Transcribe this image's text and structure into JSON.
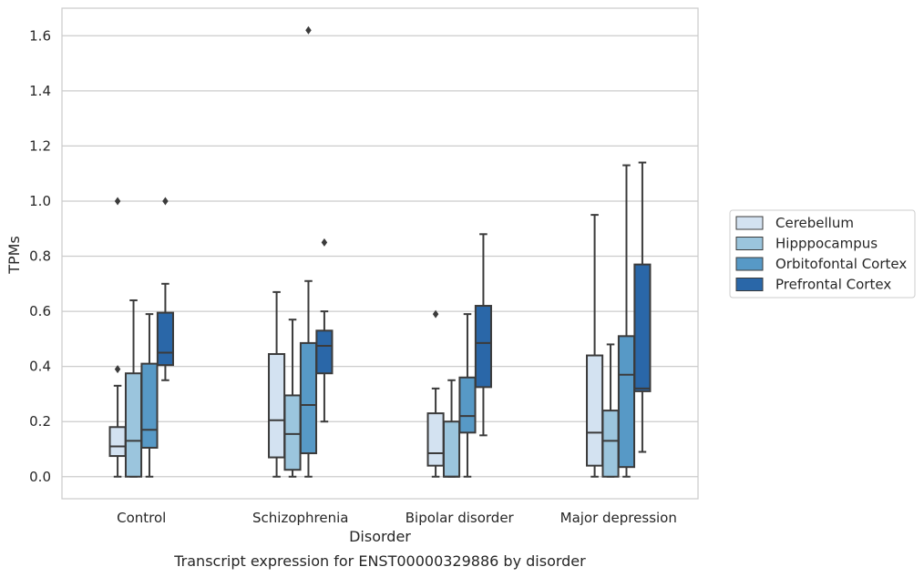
{
  "chart_data": {
    "type": "boxplot",
    "caption": "Transcript expression for ENST00000329886 by disorder",
    "xlabel": "Disorder",
    "ylabel": "TPMs",
    "ylim": [
      -0.08,
      1.7
    ],
    "yticks": [
      "0.0",
      "0.2",
      "0.4",
      "0.6",
      "0.8",
      "1.0",
      "1.2",
      "1.4",
      "1.6"
    ],
    "grid": "horizontal",
    "legend_position": "right",
    "categories": [
      "Control",
      "Schizophrenia",
      "Bipolar disorder",
      "Major depression"
    ],
    "series": [
      {
        "name": "Cerebellum",
        "color": "#d3e2f1",
        "boxes": [
          {
            "whisker_low": 0.0,
            "q1": 0.075,
            "median": 0.11,
            "q3": 0.18,
            "whisker_high": 0.33,
            "outliers": [
              0.39,
              1.0
            ]
          },
          {
            "whisker_low": 0.0,
            "q1": 0.07,
            "median": 0.205,
            "q3": 0.445,
            "whisker_high": 0.67,
            "outliers": []
          },
          {
            "whisker_low": 0.0,
            "q1": 0.04,
            "median": 0.085,
            "q3": 0.23,
            "whisker_high": 0.32,
            "outliers": [
              0.59
            ]
          },
          {
            "whisker_low": 0.0,
            "q1": 0.04,
            "median": 0.16,
            "q3": 0.44,
            "whisker_high": 0.95,
            "outliers": []
          }
        ]
      },
      {
        "name": "Hipppocampus",
        "color": "#9bc5dd",
        "boxes": [
          {
            "whisker_low": 0.0,
            "q1": 0.0,
            "median": 0.13,
            "q3": 0.375,
            "whisker_high": 0.64,
            "outliers": []
          },
          {
            "whisker_low": 0.0,
            "q1": 0.025,
            "median": 0.155,
            "q3": 0.295,
            "whisker_high": 0.57,
            "outliers": []
          },
          {
            "whisker_low": 0.0,
            "q1": 0.0,
            "median": 0.0,
            "q3": 0.2,
            "whisker_high": 0.35,
            "outliers": []
          },
          {
            "whisker_low": 0.0,
            "q1": 0.0,
            "median": 0.13,
            "q3": 0.24,
            "whisker_high": 0.48,
            "outliers": []
          }
        ]
      },
      {
        "name": "Orbitofontal Cortex",
        "color": "#5799c6",
        "boxes": [
          {
            "whisker_low": 0.0,
            "q1": 0.105,
            "median": 0.17,
            "q3": 0.41,
            "whisker_high": 0.59,
            "outliers": []
          },
          {
            "whisker_low": 0.0,
            "q1": 0.085,
            "median": 0.26,
            "q3": 0.485,
            "whisker_high": 0.71,
            "outliers": [
              1.62
            ]
          },
          {
            "whisker_low": 0.0,
            "q1": 0.16,
            "median": 0.22,
            "q3": 0.36,
            "whisker_high": 0.59,
            "outliers": []
          },
          {
            "whisker_low": 0.0,
            "q1": 0.035,
            "median": 0.37,
            "q3": 0.51,
            "whisker_high": 1.13,
            "outliers": []
          }
        ]
      },
      {
        "name": "Prefrontal Cortex",
        "color": "#2a67a8",
        "boxes": [
          {
            "whisker_low": 0.35,
            "q1": 0.405,
            "median": 0.45,
            "q3": 0.595,
            "whisker_high": 0.7,
            "outliers": [
              1.0
            ]
          },
          {
            "whisker_low": 0.2,
            "q1": 0.375,
            "median": 0.475,
            "q3": 0.53,
            "whisker_high": 0.6,
            "outliers": [
              0.85
            ]
          },
          {
            "whisker_low": 0.15,
            "q1": 0.325,
            "median": 0.485,
            "q3": 0.62,
            "whisker_high": 0.88,
            "outliers": []
          },
          {
            "whisker_low": 0.09,
            "q1": 0.31,
            "median": 0.32,
            "q3": 0.77,
            "whisker_high": 1.14,
            "outliers": []
          }
        ]
      }
    ]
  }
}
